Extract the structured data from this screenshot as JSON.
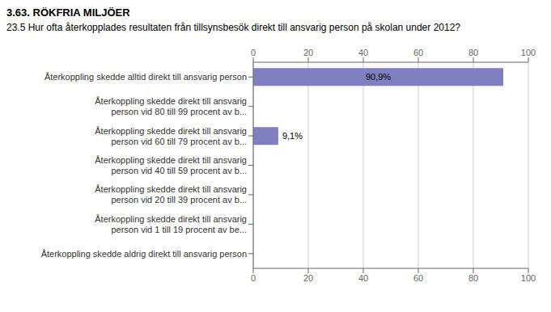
{
  "chart_data": {
    "type": "bar",
    "title": "3.63. RÖKFRIA MILJÖER",
    "subtitle": "23.5 Hur ofta återkopplades resultaten från tillsynsbesök direkt till ansvarig person på skolan under 2012?",
    "orientation": "horizontal",
    "categories": [
      "Återkoppling skedde alltid direkt till ansvarig person",
      "Återkoppling skedde direkt till ansvarig\nperson vid 80 till 99 procent av b...",
      "Återkoppling skedde direkt till ansvarig\nperson vid 60 till 79 procent av b...",
      "Återkoppling skedde direkt till ansvarig\nperson vid 40 till 59 procent av b...",
      "Återkoppling skedde direkt till ansvarig\nperson vid 20 till 39 procent av b...",
      "Återkoppling skedde direkt till ansvarig\nperson vid 1 till 19 procent av be...",
      "Återkoppling skedde aldrig direkt till ansvarig person"
    ],
    "values": [
      90.9,
      0,
      9.1,
      0,
      0,
      0,
      0
    ],
    "value_labels": [
      "90,9%",
      null,
      "9,1%",
      null,
      null,
      null,
      null
    ],
    "color": "#8080c0",
    "xlim": [
      0,
      100
    ],
    "xticks": [
      0,
      20,
      40,
      60,
      80,
      100
    ],
    "grid": true
  }
}
